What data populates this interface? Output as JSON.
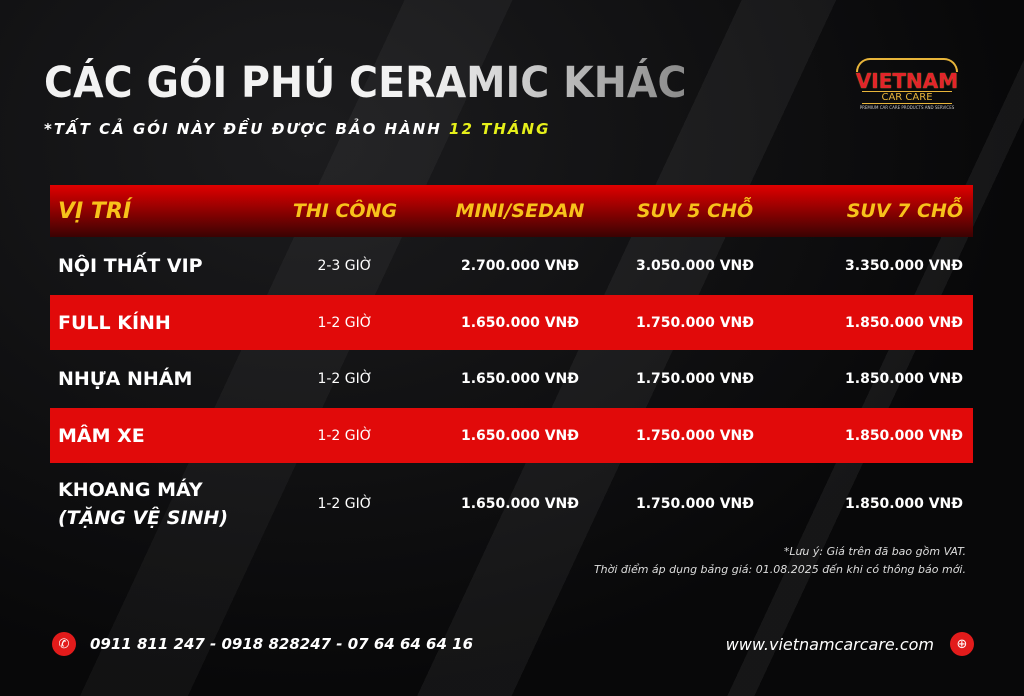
{
  "title": "CÁC GÓI PHỦ CERAMIC KHÁC",
  "subtitle": {
    "text": "*TẤT CẢ GÓI NÀY ĐỀU ĐƯỢC BẢO HÀNH ",
    "highlight": "12 THÁNG"
  },
  "logo": {
    "name": "VIETNAM",
    "sub": "CAR CARE",
    "tagline": "PREMIUM CAR CARE PRODUCTS AND SERVICES"
  },
  "colors": {
    "accent": "#e10a0a",
    "header_text": "#f7c21b",
    "highlight": "#e6f01a"
  },
  "table": {
    "headers": [
      "VỊ TRÍ",
      "THI CÔNG",
      "MINI/SEDAN",
      "SUV 5 CHỖ",
      "SUV 7 CHỖ"
    ],
    "rows": [
      {
        "name": "NỘI THẤT VIP",
        "time": "2-3 GIỜ",
        "mini": "2.700.000 VNĐ",
        "suv5": "3.050.000 VNĐ",
        "suv7": "3.350.000 VNĐ"
      },
      {
        "name": "FULL KÍNH",
        "time": "1-2 GIỜ",
        "mini": "1.650.000 VNĐ",
        "suv5": "1.750.000 VNĐ",
        "suv7": "1.850.000 VNĐ"
      },
      {
        "name": "NHỰA NHÁM",
        "time": "1-2 GIỜ",
        "mini": "1.650.000 VNĐ",
        "suv5": "1.750.000 VNĐ",
        "suv7": "1.850.000 VNĐ"
      },
      {
        "name": "MÂM XE",
        "time": "1-2 GIỜ",
        "mini": "1.650.000 VNĐ",
        "suv5": "1.750.000 VNĐ",
        "suv7": "1.850.000 VNĐ"
      },
      {
        "name": "KHOANG MÁY",
        "name2": "(TẶNG VỆ SINH)",
        "time": "1-2 GIỜ",
        "mini": "1.650.000 VNĐ",
        "suv5": "1.750.000 VNĐ",
        "suv7": "1.850.000 VNĐ"
      }
    ]
  },
  "notes": [
    "*Lưu ý: Giá trên đã bao gồm VAT.",
    "Thời điểm áp dụng bảng giá: 01.08.2025 đến khi có thông báo mới."
  ],
  "footer": {
    "phone_icon": "phone-icon",
    "phones": "0911 811 247 - 0918 828247 - 07 64 64 64 16",
    "website": "www.vietnamcarcare.com",
    "web_icon": "globe-icon"
  }
}
